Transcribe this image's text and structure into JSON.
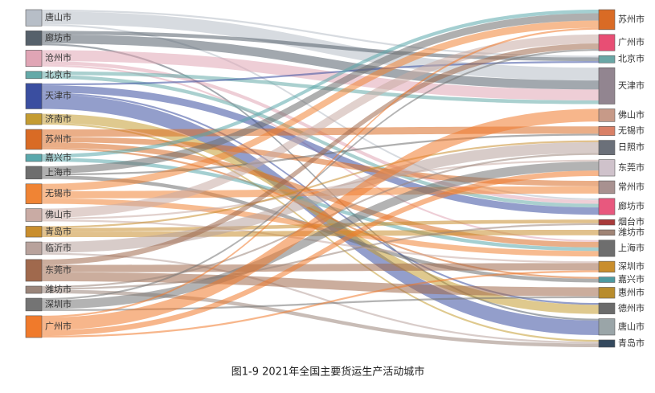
{
  "chart_data": {
    "type": "sankey",
    "caption": "图1-9 2021年全国主要货运生产活动城市",
    "targets": [
      {
        "name": "苏州市",
        "color": "#d96b25"
      },
      {
        "name": "广州市",
        "color": "#e84e74"
      },
      {
        "name": "北京市",
        "color": "#6aa7a6"
      },
      {
        "name": "天津市",
        "color": "#928590"
      },
      {
        "name": "佛山市",
        "color": "#c79a88"
      },
      {
        "name": "无锡市",
        "color": "#d98066"
      },
      {
        "name": "日照市",
        "color": "#6b7079"
      },
      {
        "name": "东莞市",
        "color": "#cfc2cb"
      },
      {
        "name": "常州市",
        "color": "#a89190"
      },
      {
        "name": "廊坊市",
        "color": "#e8587e"
      },
      {
        "name": "烟台市",
        "color": "#a83a3a"
      },
      {
        "name": "潍坊市",
        "color": "#a08475"
      },
      {
        "name": "上海市",
        "color": "#6e6e6e"
      },
      {
        "name": "深圳市",
        "color": "#c98e2d"
      },
      {
        "name": "嘉兴市",
        "color": "#4e9aa0"
      },
      {
        "name": "惠州市",
        "color": "#b88c2d"
      },
      {
        "name": "德州市",
        "color": "#6b6b6b"
      },
      {
        "name": "唐山市",
        "color": "#9aa5a8"
      },
      {
        "name": "青岛市",
        "color": "#34495e"
      }
    ],
    "sources": [
      {
        "name": "唐山市",
        "color": "#b7bec7",
        "links": [
          {
            "target": "天津市",
            "value": 14
          },
          {
            "target": "北京市",
            "value": 2
          },
          {
            "target": "廊坊市",
            "value": 2
          }
        ]
      },
      {
        "name": "廊坊市",
        "color": "#56616b",
        "links": [
          {
            "target": "天津市",
            "value": 10
          },
          {
            "target": "北京市",
            "value": 4
          },
          {
            "target": "唐山市",
            "value": 2
          }
        ]
      },
      {
        "name": "沧州市",
        "color": "#e0a5b5",
        "links": [
          {
            "target": "天津市",
            "value": 12
          },
          {
            "target": "廊坊市",
            "value": 4
          },
          {
            "target": "上海市",
            "value": 2
          }
        ]
      },
      {
        "name": "北京市",
        "color": "#64a9a8",
        "links": [
          {
            "target": "天津市",
            "value": 4
          },
          {
            "target": "廊坊市",
            "value": 4
          }
        ]
      },
      {
        "name": "天津市",
        "color": "#3a4ea0",
        "links": [
          {
            "target": "唐山市",
            "value": 16
          },
          {
            "target": "廊坊市",
            "value": 8
          },
          {
            "target": "北京市",
            "value": 2
          },
          {
            "target": "德州市",
            "value": 2
          }
        ]
      },
      {
        "name": "济南市",
        "color": "#c49c32",
        "links": [
          {
            "target": "德州市",
            "value": 10
          },
          {
            "target": "青岛市",
            "value": 2
          }
        ]
      },
      {
        "name": "苏州市",
        "color": "#d96b25",
        "links": [
          {
            "target": "上海市",
            "value": 6
          },
          {
            "target": "无锡市",
            "value": 8
          },
          {
            "target": "常州市",
            "value": 6
          },
          {
            "target": "嘉兴市",
            "value": 2
          }
        ]
      },
      {
        "name": "嘉兴市",
        "color": "#5aa8ac",
        "links": [
          {
            "target": "苏州市",
            "value": 4
          },
          {
            "target": "上海市",
            "value": 4
          }
        ]
      },
      {
        "name": "上海市",
        "color": "#6e6e6e",
        "links": [
          {
            "target": "苏州市",
            "value": 8
          },
          {
            "target": "嘉兴市",
            "value": 4
          },
          {
            "target": "无锡市",
            "value": 2
          }
        ]
      },
      {
        "name": "无锡市",
        "color": "#f08434",
        "links": [
          {
            "target": "苏州市",
            "value": 8
          },
          {
            "target": "常州市",
            "value": 8
          },
          {
            "target": "上海市",
            "value": 6
          }
        ]
      },
      {
        "name": "佛山市",
        "color": "#c9aba4",
        "links": [
          {
            "target": "广州市",
            "value": 10
          },
          {
            "target": "深圳市",
            "value": 2
          },
          {
            "target": "东莞市",
            "value": 2
          }
        ]
      },
      {
        "name": "青岛市",
        "color": "#c98e2d",
        "links": [
          {
            "target": "潍坊市",
            "value": 6
          },
          {
            "target": "烟台市",
            "value": 4
          },
          {
            "target": "日照市",
            "value": 2
          }
        ]
      },
      {
        "name": "临沂市",
        "color": "#b8a29c",
        "links": [
          {
            "target": "日照市",
            "value": 12
          },
          {
            "target": "青岛市",
            "value": 2
          }
        ]
      },
      {
        "name": "东莞市",
        "color": "#a0694d",
        "links": [
          {
            "target": "深圳市",
            "value": 8
          },
          {
            "target": "惠州市",
            "value": 10
          },
          {
            "target": "广州市",
            "value": 6
          }
        ]
      },
      {
        "name": "潍坊市",
        "color": "#9a857a",
        "links": [
          {
            "target": "日照市",
            "value": 2
          },
          {
            "target": "青岛市",
            "value": 4
          },
          {
            "target": "烟台市",
            "value": 2
          }
        ]
      },
      {
        "name": "深圳市",
        "color": "#747474",
        "links": [
          {
            "target": "东莞市",
            "value": 10
          },
          {
            "target": "惠州市",
            "value": 2
          },
          {
            "target": "广州市",
            "value": 2
          }
        ]
      },
      {
        "name": "广州市",
        "color": "#f07a2b",
        "links": [
          {
            "target": "佛山市",
            "value": 14
          },
          {
            "target": "东莞市",
            "value": 6
          },
          {
            "target": "深圳市",
            "value": 2
          },
          {
            "target": "苏州市",
            "value": 2
          }
        ]
      }
    ]
  }
}
